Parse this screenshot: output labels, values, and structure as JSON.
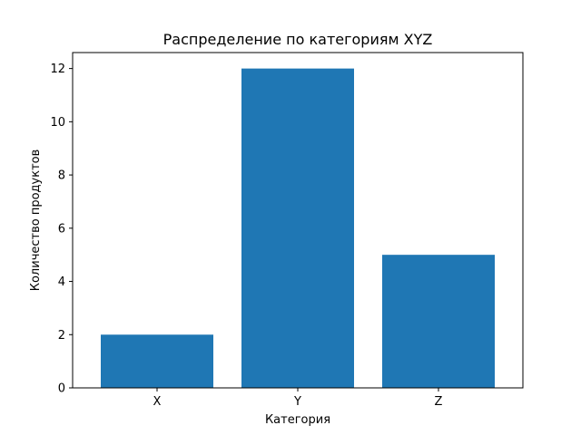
{
  "chart_data": {
    "type": "bar",
    "title": "Распределение по категориям XYZ",
    "xlabel": "Категория",
    "ylabel": "Количество продуктов",
    "categories": [
      "X",
      "Y",
      "Z"
    ],
    "values": [
      2,
      12,
      5
    ],
    "ylim": [
      0,
      12.6
    ],
    "yticks": [
      0,
      2,
      4,
      6,
      8,
      10,
      12
    ],
    "grid": false,
    "bar_color": "#1f77b4"
  }
}
